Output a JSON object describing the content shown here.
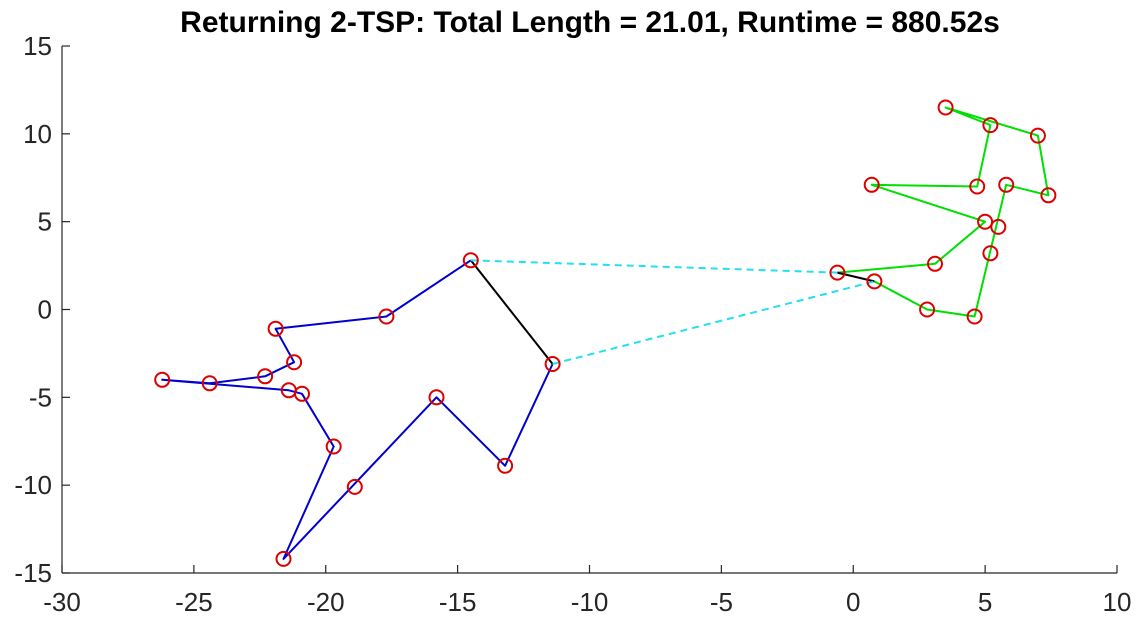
{
  "chart_data": {
    "type": "line",
    "title": "Returning 2-TSP: Total Length = 21.01, Runtime = 880.52s",
    "xlabel": "",
    "ylabel": "",
    "xlim": [
      -30,
      10
    ],
    "ylim": [
      -15,
      15
    ],
    "xticks": [
      -30,
      -25,
      -20,
      -15,
      -10,
      -5,
      0,
      5,
      10
    ],
    "yticks": [
      -15,
      -10,
      -5,
      0,
      5,
      10,
      15
    ],
    "grid": false,
    "colors": {
      "blue_tour": "#0000d0",
      "green_tour": "#00e000",
      "bridge": "#000000",
      "connector": "#22e0f0",
      "city_marker": "#dd0000"
    },
    "series": [
      {
        "color_key": "blue_tour",
        "style": "solid",
        "points": [
          [
            -14.5,
            2.8
          ],
          [
            -17.7,
            -0.4
          ],
          [
            -21.9,
            -1.1
          ],
          [
            -21.2,
            -3.0
          ],
          [
            -22.3,
            -3.8
          ],
          [
            -24.4,
            -4.2
          ],
          [
            -26.2,
            -4.0
          ],
          [
            -21.4,
            -4.6
          ],
          [
            -20.9,
            -4.8
          ],
          [
            -19.7,
            -7.8
          ],
          [
            -21.6,
            -14.2
          ],
          [
            -15.8,
            -5.0
          ],
          [
            -13.2,
            -8.9
          ],
          [
            -11.4,
            -3.1
          ]
        ]
      },
      {
        "color_key": "green_tour",
        "style": "solid",
        "points": [
          [
            -0.6,
            2.1
          ],
          [
            3.1,
            2.6
          ],
          [
            5.0,
            5.0
          ],
          [
            0.7,
            7.1
          ],
          [
            4.7,
            7.0
          ],
          [
            5.2,
            10.5
          ],
          [
            3.5,
            11.5
          ],
          [
            7.0,
            9.9
          ],
          [
            7.4,
            6.5
          ],
          [
            5.8,
            7.1
          ],
          [
            4.6,
            -0.4
          ],
          [
            2.8,
            -0.0
          ],
          [
            0.8,
            1.6
          ]
        ]
      },
      {
        "color_key": "bridge",
        "style": "solid",
        "points": [
          [
            -14.5,
            2.8
          ],
          [
            -11.4,
            -3.1
          ]
        ]
      },
      {
        "color_key": "bridge",
        "style": "solid",
        "points": [
          [
            -0.6,
            2.1
          ],
          [
            0.8,
            1.6
          ]
        ]
      },
      {
        "color_key": "connector",
        "style": "dashed",
        "points": [
          [
            -14.5,
            2.8
          ],
          [
            -0.6,
            2.1
          ]
        ]
      },
      {
        "color_key": "connector",
        "style": "dashed",
        "points": [
          [
            -11.4,
            -3.1
          ],
          [
            0.8,
            1.6
          ]
        ]
      }
    ],
    "cities": [
      [
        -26.2,
        -4.0
      ],
      [
        -24.4,
        -4.2
      ],
      [
        -22.3,
        -3.8
      ],
      [
        -21.9,
        -1.1
      ],
      [
        -21.2,
        -3.0
      ],
      [
        -21.4,
        -4.6
      ],
      [
        -20.9,
        -4.8
      ],
      [
        -19.7,
        -7.8
      ],
      [
        -18.9,
        -10.1
      ],
      [
        -21.6,
        -14.2
      ],
      [
        -17.7,
        -0.4
      ],
      [
        -15.8,
        -5.0
      ],
      [
        -14.5,
        2.8
      ],
      [
        -13.2,
        -8.9
      ],
      [
        -11.4,
        -3.1
      ],
      [
        -0.6,
        2.1
      ],
      [
        0.8,
        1.6
      ],
      [
        0.7,
        7.1
      ],
      [
        2.8,
        -0.0
      ],
      [
        3.1,
        2.6
      ],
      [
        3.5,
        11.5
      ],
      [
        4.6,
        -0.4
      ],
      [
        4.7,
        7.0
      ],
      [
        5.0,
        5.0
      ],
      [
        5.2,
        10.5
      ],
      [
        5.2,
        3.2
      ],
      [
        5.5,
        4.7
      ],
      [
        5.8,
        7.1
      ],
      [
        7.0,
        9.9
      ],
      [
        7.4,
        6.5
      ]
    ]
  }
}
